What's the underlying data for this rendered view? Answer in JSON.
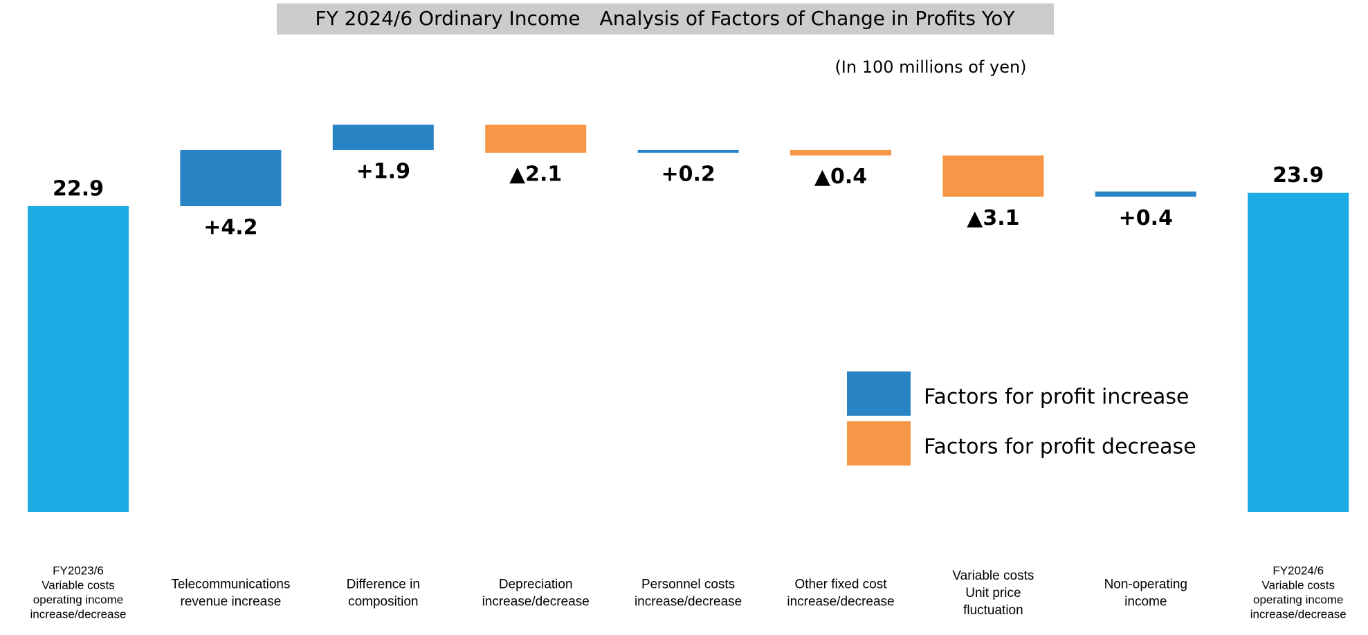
{
  "chart_data": {
    "type": "waterfall",
    "title": "FY 2024/6 Ordinary Income　Analysis of Factors of Change in Profits YoY",
    "subtitle": "(In 100 millions of yen)",
    "categories": [
      [
        "FY2023/6",
        "Variable costs",
        "operating income",
        "increase/decrease"
      ],
      [
        "Telecommunications",
        "revenue increase"
      ],
      [
        "Difference in",
        "composition"
      ],
      [
        "Depreciation",
        "increase/decrease"
      ],
      [
        "Personnel costs",
        "increase/decrease"
      ],
      [
        "Other fixed cost",
        "increase/decrease"
      ],
      [
        "Variable costs",
        "Unit price",
        "fluctuation"
      ],
      [
        "Non-operating",
        "income"
      ],
      [
        "FY2024/6",
        "Variable costs",
        "operating income",
        "increase/decrease"
      ]
    ],
    "values": [
      22.9,
      4.2,
      1.9,
      -2.1,
      0.2,
      -0.4,
      -3.1,
      0.4,
      23.9
    ],
    "value_labels": [
      "22.9",
      "+4.2",
      "+1.9",
      "▲2.1",
      "+0.2",
      "▲0.4",
      "▲3.1",
      "+0.4",
      "23.9"
    ],
    "total_color": "#1cabe2",
    "legend": [
      {
        "name": "Factors for profit increase",
        "color": "#2984c6"
      },
      {
        "name": "Factors for profit decrease",
        "color": "#f79646"
      }
    ]
  }
}
